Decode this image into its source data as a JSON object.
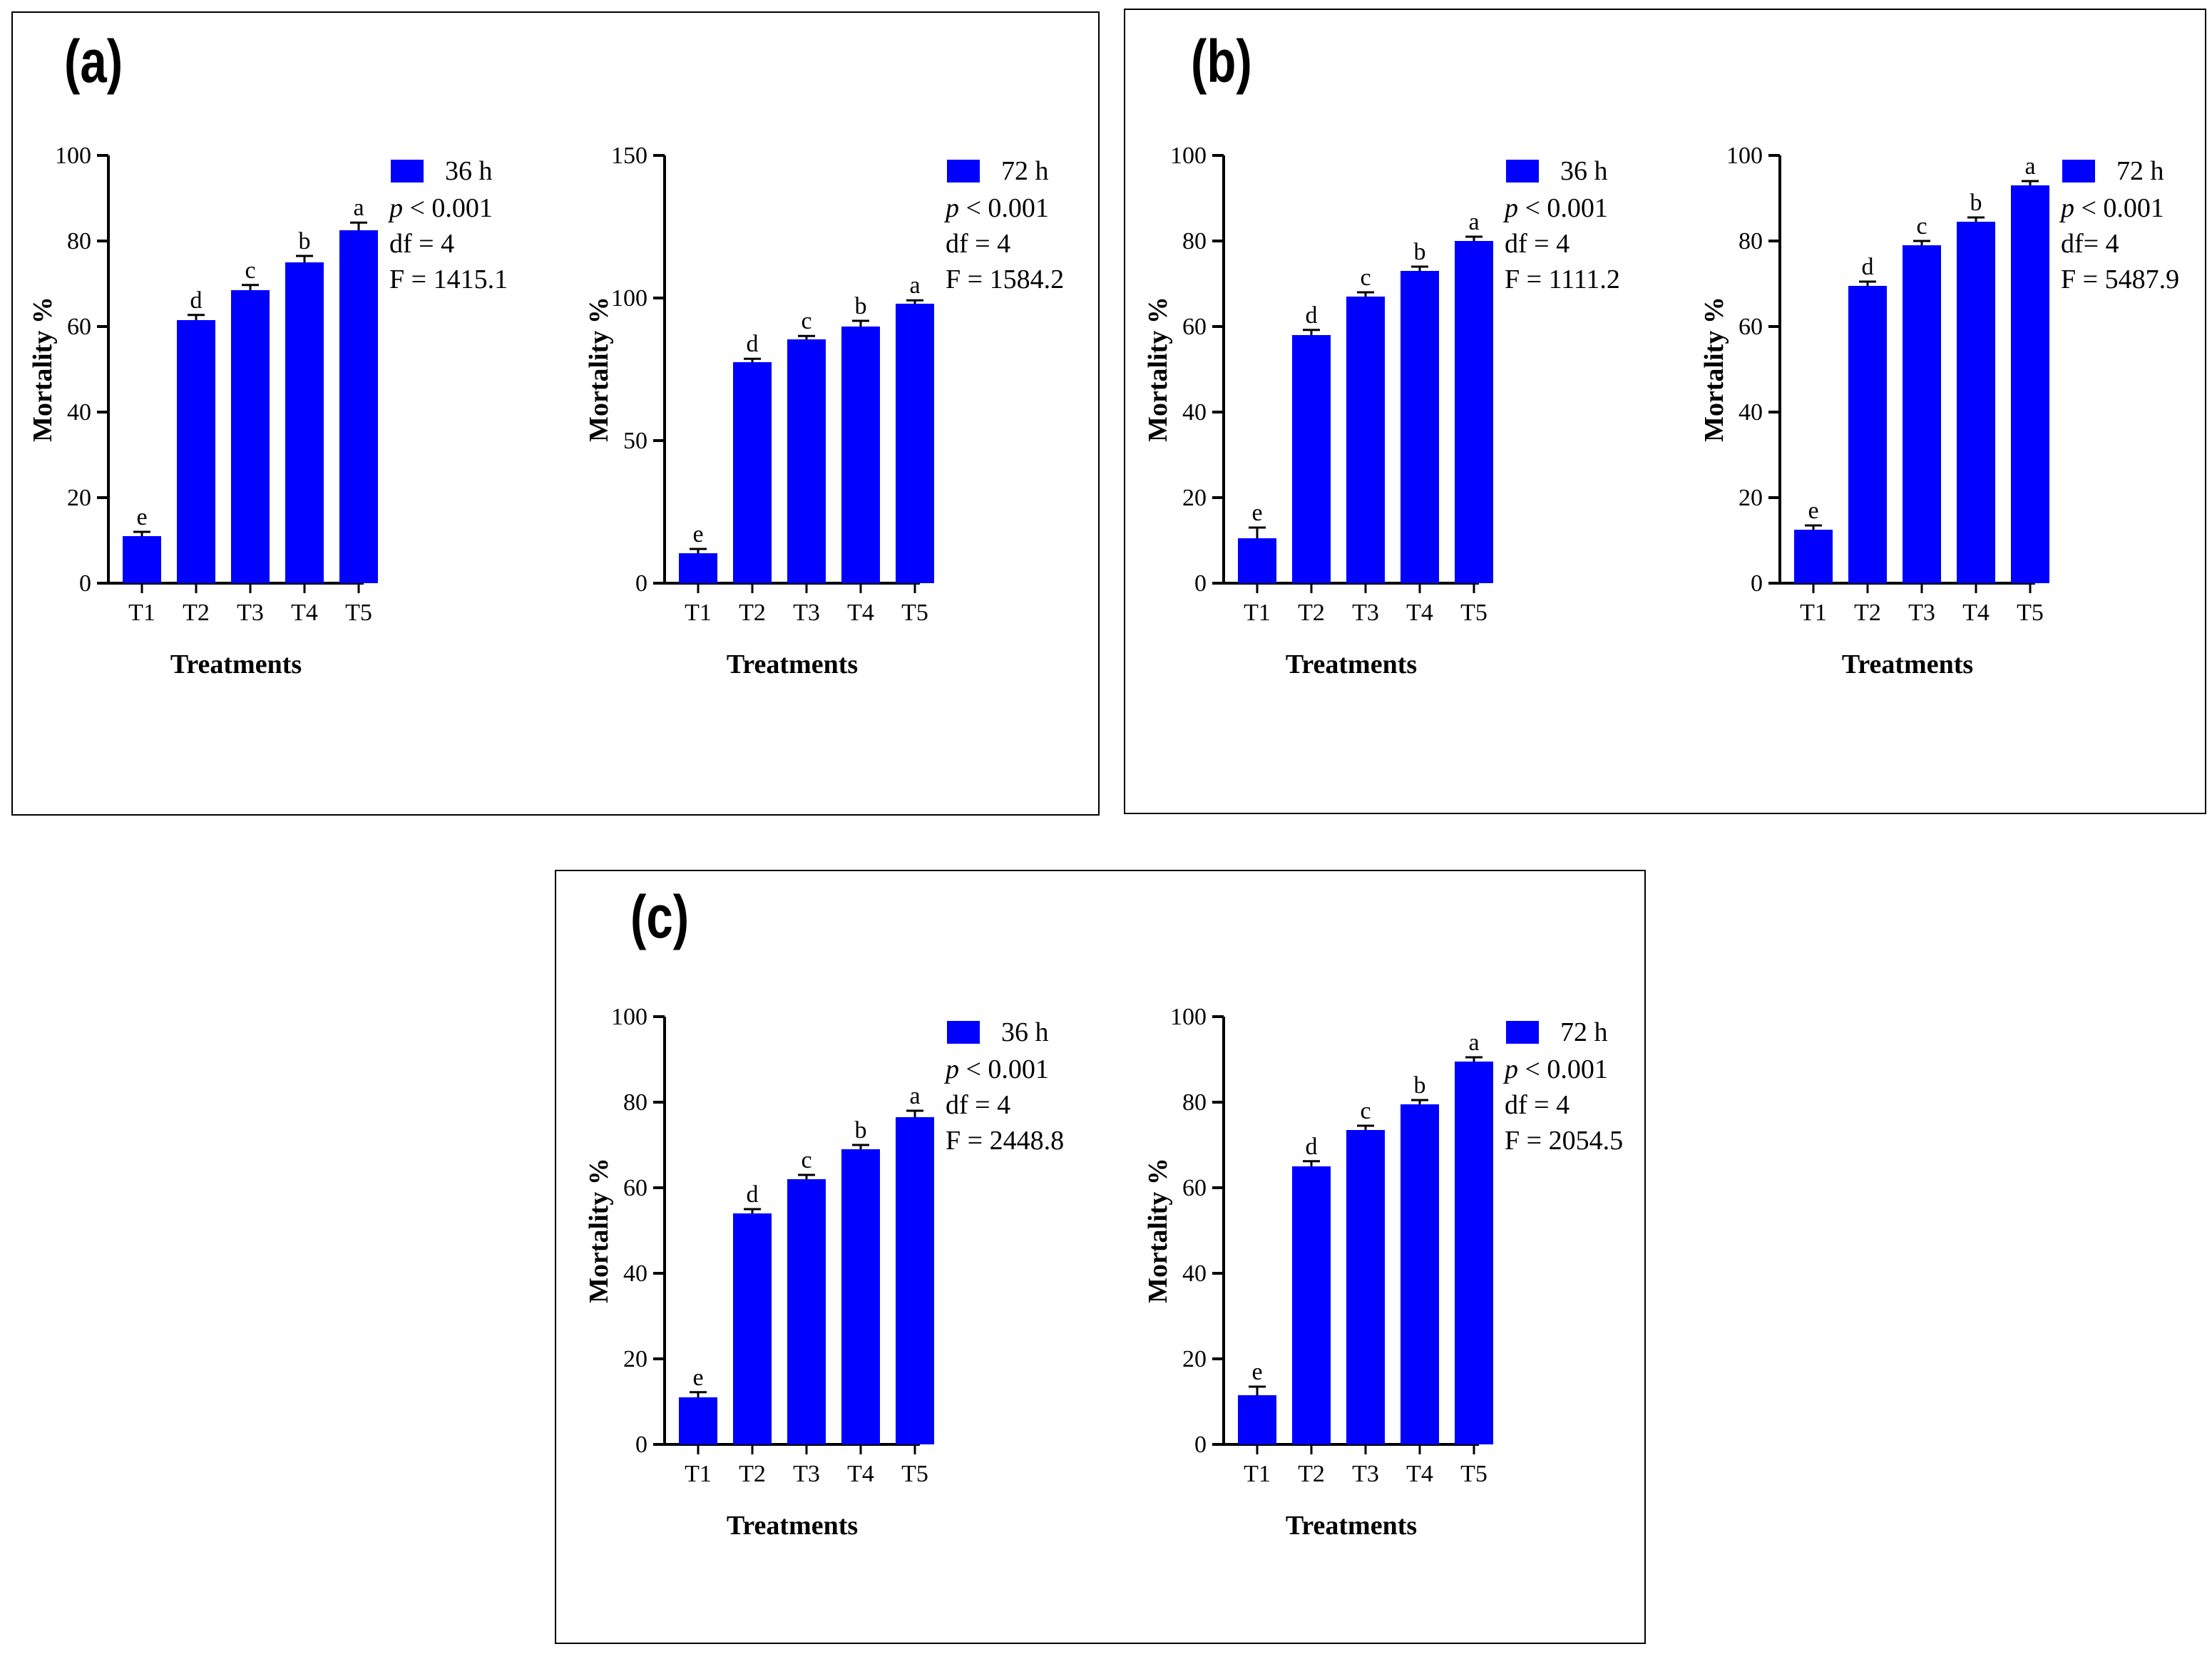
{
  "bar_color": "#0000FF",
  "panels": [
    {
      "label": "(a)"
    },
    {
      "label": "(b)"
    },
    {
      "label": "(c)"
    }
  ],
  "chart_data": [
    {
      "panel": "(a)",
      "type": "bar",
      "legend": "36 h",
      "categories": [
        "T1",
        "T2",
        "T3",
        "T4",
        "T5"
      ],
      "values": [
        11,
        61.5,
        68.5,
        75,
        82.5
      ],
      "errors": [
        1,
        1.2,
        1.2,
        1.5,
        1.8
      ],
      "sig_letters": [
        "e",
        "d",
        "c",
        "b",
        "a"
      ],
      "ylim": [
        0,
        100
      ],
      "yticks": [
        0,
        20,
        40,
        60,
        80,
        100
      ],
      "xlabel": "Treatments",
      "ylabel": "Mortality %",
      "stats": {
        "p": "< 0.001",
        "df": "df = 4",
        "f": "F = 1415.1"
      }
    },
    {
      "panel": "(a)",
      "type": "bar",
      "legend": "72 h",
      "categories": [
        "T1",
        "T2",
        "T3",
        "T4",
        "T5"
      ],
      "values": [
        10.5,
        77.5,
        85.5,
        90,
        98
      ],
      "errors": [
        1.5,
        1.2,
        1.2,
        2,
        1.2
      ],
      "sig_letters": [
        "e",
        "d",
        "c",
        "b",
        "a"
      ],
      "ylim": [
        0,
        150
      ],
      "yticks": [
        0,
        50,
        100,
        150
      ],
      "xlabel": "Treatments",
      "ylabel": "Mortality %",
      "stats": {
        "p": "< 0.001",
        "df": "df = 4",
        "f": "F = 1584.2"
      }
    },
    {
      "panel": "(b)",
      "type": "bar",
      "legend": "36 h",
      "categories": [
        "T1",
        "T2",
        "T3",
        "T4",
        "T5"
      ],
      "values": [
        10.5,
        58,
        67,
        73,
        80
      ],
      "errors": [
        2.5,
        1.2,
        1,
        1,
        1
      ],
      "sig_letters": [
        "e",
        "d",
        "c",
        "b",
        "a"
      ],
      "ylim": [
        0,
        100
      ],
      "yticks": [
        0,
        20,
        40,
        60,
        80,
        100
      ],
      "xlabel": "Treatments",
      "ylabel": "Mortality %",
      "stats": {
        "p": "< 0.001",
        "df": "df = 4",
        "f": "F = 1111.2"
      }
    },
    {
      "panel": "(b)",
      "type": "bar",
      "legend": "72 h",
      "categories": [
        "T1",
        "T2",
        "T3",
        "T4",
        "T5"
      ],
      "values": [
        12.5,
        69.5,
        79,
        84.5,
        93
      ],
      "errors": [
        1,
        1,
        1,
        1,
        1
      ],
      "sig_letters": [
        "e",
        "d",
        "c",
        "b",
        "a"
      ],
      "ylim": [
        0,
        100
      ],
      "yticks": [
        0,
        20,
        40,
        60,
        80,
        100
      ],
      "xlabel": "Treatments",
      "ylabel": "Mortality %",
      "stats": {
        "p": "< 0.001",
        "df": "df= 4",
        "f": "F = 5487.9"
      }
    },
    {
      "panel": "(c)",
      "type": "bar",
      "legend": "36 h",
      "categories": [
        "T1",
        "T2",
        "T3",
        "T4",
        "T5"
      ],
      "values": [
        11,
        54,
        62,
        69,
        76.5
      ],
      "errors": [
        1.2,
        1,
        1,
        1,
        1.5
      ],
      "sig_letters": [
        "e",
        "d",
        "c",
        "b",
        "a"
      ],
      "ylim": [
        0,
        100
      ],
      "yticks": [
        0,
        20,
        40,
        60,
        80,
        100
      ],
      "xlabel": "Treatments",
      "ylabel": "Mortality %",
      "stats": {
        "p": "< 0.001",
        "df": "df = 4",
        "f": "F = 2448.8"
      }
    },
    {
      "panel": "(c)",
      "type": "bar",
      "legend": "72 h",
      "categories": [
        "T1",
        "T2",
        "T3",
        "T4",
        "T5"
      ],
      "values": [
        11.5,
        65,
        73.5,
        79.5,
        89.5
      ],
      "errors": [
        2,
        1.2,
        1,
        1,
        1
      ],
      "sig_letters": [
        "e",
        "d",
        "c",
        "b",
        "a"
      ],
      "ylim": [
        0,
        100
      ],
      "yticks": [
        0,
        20,
        40,
        60,
        80,
        100
      ],
      "xlabel": "Treatments",
      "ylabel": "Mortality %",
      "stats": {
        "p": "< 0.001",
        "df": "df = 4",
        "f": "F = 2054.5"
      }
    }
  ]
}
